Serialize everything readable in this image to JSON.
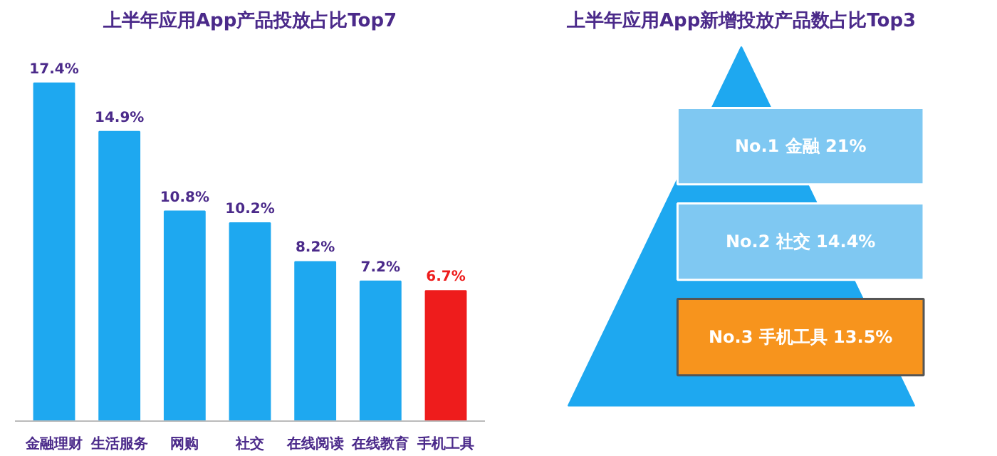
{
  "chart_data": [
    {
      "type": "bar",
      "title": "上半年应用App产品投放占比Top7",
      "categories": [
        "金融理财",
        "生活服务",
        "网购",
        "社交",
        "在线阅读",
        "在线教育",
        "手机工具"
      ],
      "values": [
        17.4,
        14.9,
        10.8,
        10.2,
        8.2,
        7.2,
        6.7
      ],
      "colors": [
        "#1ea8f0",
        "#1ea8f0",
        "#1ea8f0",
        "#1ea8f0",
        "#1ea8f0",
        "#1ea8f0",
        "#ee1c1c"
      ],
      "value_labels": [
        "17.4%",
        "14.9%",
        "10.8%",
        "10.2%",
        "8.2%",
        "7.2%",
        "6.7%"
      ]
    },
    {
      "type": "other",
      "title": "上半年应用App新增投放产品数占比Top3",
      "categories": [
        "No.1 金融 21%",
        "No.2 社交 14.4%",
        "No.3 手机工具 13.5%"
      ],
      "colors": [
        "#7fc8f2",
        "#7fc8f2",
        "#f7941d"
      ]
    }
  ]
}
